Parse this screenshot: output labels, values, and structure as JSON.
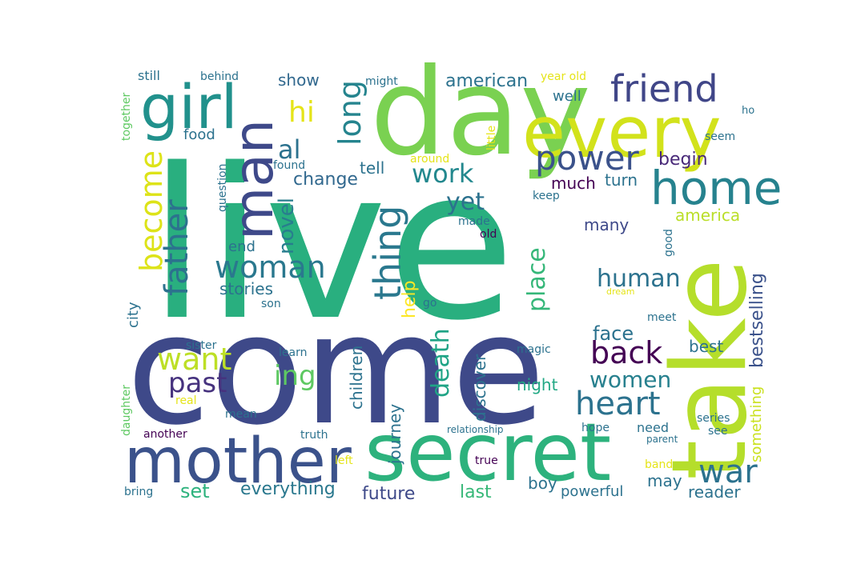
{
  "words": [
    {
      "text": "live",
      "color": "#29af7f"
    },
    {
      "text": "come",
      "color": "#3e4989"
    },
    {
      "text": "day",
      "color": "#7ad151"
    },
    {
      "text": "take",
      "color": "#b5de2b"
    },
    {
      "text": "secret",
      "color": "#2db27d"
    },
    {
      "text": "mother",
      "color": "#3b528b"
    },
    {
      "text": "every",
      "color": "#d2e21b"
    },
    {
      "text": "girl",
      "color": "#21918c"
    },
    {
      "text": "man",
      "color": "#3e4989"
    },
    {
      "text": "home",
      "color": "#26828e"
    },
    {
      "text": "friend",
      "color": "#404688"
    },
    {
      "text": "power",
      "color": "#3b528b"
    },
    {
      "text": "thing",
      "color": "#2a788e"
    },
    {
      "text": "father",
      "color": "#2c728e"
    },
    {
      "text": "become",
      "color": "#dde318"
    },
    {
      "text": "woman",
      "color": "#2a788e"
    },
    {
      "text": "heart",
      "color": "#2c728e"
    },
    {
      "text": "back",
      "color": "#440154"
    },
    {
      "text": "want",
      "color": "#bddf26"
    },
    {
      "text": "past",
      "color": "#46327e"
    },
    {
      "text": "work",
      "color": "#23888e"
    },
    {
      "text": "war",
      "color": "#2c728e"
    },
    {
      "text": "hi",
      "color": "#e5e419"
    },
    {
      "text": "al",
      "color": "#2c728e"
    },
    {
      "text": "long",
      "color": "#25848e"
    },
    {
      "text": "place",
      "color": "#35b779"
    },
    {
      "text": "human",
      "color": "#2c728e"
    },
    {
      "text": "death",
      "color": "#20a486"
    },
    {
      "text": "novel",
      "color": "#287d8e"
    },
    {
      "text": "yet",
      "color": "#2c728e"
    },
    {
      "text": "ing",
      "color": "#5ec962"
    },
    {
      "text": "women",
      "color": "#27808e"
    },
    {
      "text": "help",
      "color": "#fde725"
    },
    {
      "text": "begin",
      "color": "#482878"
    },
    {
      "text": "face",
      "color": "#2c728e"
    },
    {
      "text": "bestselling",
      "color": "#3b528b"
    },
    {
      "text": "something",
      "color": "#cae11f"
    },
    {
      "text": "journey",
      "color": "#2c728e"
    },
    {
      "text": "children",
      "color": "#2c728e"
    },
    {
      "text": "discover",
      "color": "#2c728e"
    },
    {
      "text": "america",
      "color": "#bade28"
    },
    {
      "text": "american",
      "color": "#2c728e"
    },
    {
      "text": "stories",
      "color": "#2c728e"
    },
    {
      "text": "change",
      "color": "#31688e"
    },
    {
      "text": "tell",
      "color": "#2c728e"
    },
    {
      "text": "end",
      "color": "#2c728e"
    },
    {
      "text": "food",
      "color": "#2c728e"
    },
    {
      "text": "show",
      "color": "#31688e"
    },
    {
      "text": "much",
      "color": "#440154"
    },
    {
      "text": "turn",
      "color": "#2c728e"
    },
    {
      "text": "many",
      "color": "#3e4989"
    },
    {
      "text": "night",
      "color": "#22a884"
    },
    {
      "text": "best",
      "color": "#2c728e"
    },
    {
      "text": "everything",
      "color": "#2a788e"
    },
    {
      "text": "future",
      "color": "#3e4989"
    },
    {
      "text": "set",
      "color": "#2db27d"
    },
    {
      "text": "last",
      "color": "#37b878"
    },
    {
      "text": "reader",
      "color": "#2c728e"
    },
    {
      "text": "may",
      "color": "#2c728e"
    },
    {
      "text": "boy",
      "color": "#2c728e"
    },
    {
      "text": "powerful",
      "color": "#2c728e"
    },
    {
      "text": "city",
      "color": "#2c728e"
    },
    {
      "text": "well",
      "color": "#2c728e"
    },
    {
      "text": "might",
      "color": "#2c728e"
    },
    {
      "text": "year old",
      "color": "#e5e419"
    },
    {
      "text": "still",
      "color": "#2c728e"
    },
    {
      "text": "behind",
      "color": "#2c728e"
    },
    {
      "text": "together",
      "color": "#5ec962"
    },
    {
      "text": "question",
      "color": "#2c728e"
    },
    {
      "text": "found",
      "color": "#2c728e"
    },
    {
      "text": "around",
      "color": "#e5e419"
    },
    {
      "text": "little",
      "color": "#e5e419"
    },
    {
      "text": "keep",
      "color": "#2c728e"
    },
    {
      "text": "made",
      "color": "#2c728e"
    },
    {
      "text": "old",
      "color": "#440154"
    },
    {
      "text": "good",
      "color": "#2c728e"
    },
    {
      "text": "seem",
      "color": "#2c728e"
    },
    {
      "text": "ho",
      "color": "#2c728e"
    },
    {
      "text": "dream",
      "color": "#e5e419"
    },
    {
      "text": "son",
      "color": "#2c728e"
    },
    {
      "text": "go",
      "color": "#2c728e"
    },
    {
      "text": "meet",
      "color": "#2c728e"
    },
    {
      "text": "sister",
      "color": "#2c728e"
    },
    {
      "text": "learn",
      "color": "#2c728e"
    },
    {
      "text": "magic",
      "color": "#2c728e"
    },
    {
      "text": "daughter",
      "color": "#5ec962"
    },
    {
      "text": "real",
      "color": "#e5e419"
    },
    {
      "text": "mean",
      "color": "#2c728e"
    },
    {
      "text": "another",
      "color": "#440154"
    },
    {
      "text": "truth",
      "color": "#2c728e"
    },
    {
      "text": "relationship",
      "color": "#2c728e"
    },
    {
      "text": "left",
      "color": "#e5e419"
    },
    {
      "text": "true",
      "color": "#440154"
    },
    {
      "text": "bring",
      "color": "#2c728e"
    },
    {
      "text": "hope",
      "color": "#2c728e"
    },
    {
      "text": "need",
      "color": "#2c728e"
    },
    {
      "text": "parent",
      "color": "#2c728e"
    },
    {
      "text": "see",
      "color": "#2c728e"
    },
    {
      "text": "series",
      "color": "#2c728e"
    },
    {
      "text": "band",
      "color": "#e5e419"
    }
  ]
}
